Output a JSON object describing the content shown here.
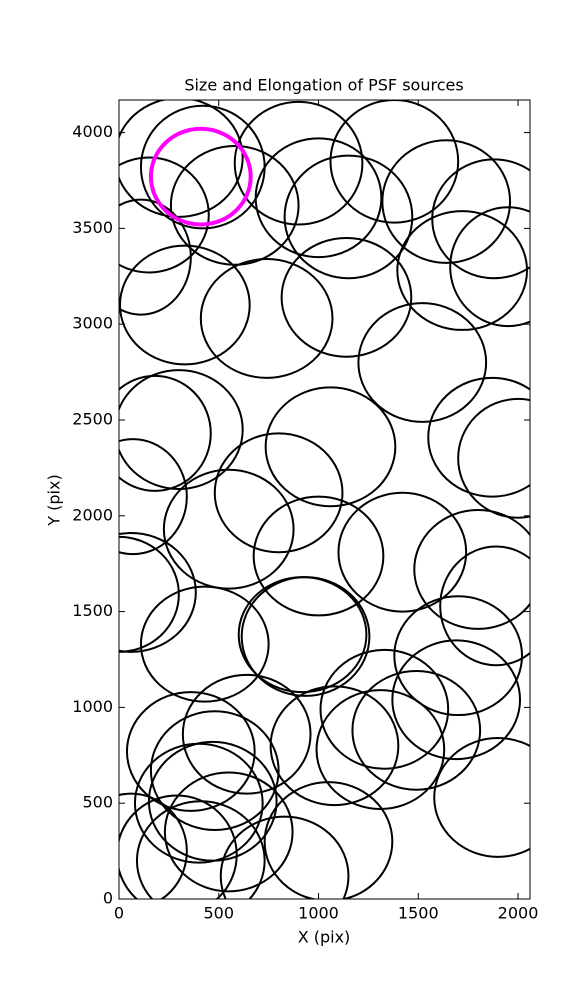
{
  "chart_data": {
    "type": "ellipse",
    "title": "Size and Elongation of PSF sources",
    "xlabel": "X (pix)",
    "ylabel": "Y (pix)",
    "xlim": [
      0,
      2060
    ],
    "ylim": [
      0,
      4170
    ],
    "xticks": [
      0,
      500,
      1000,
      1500,
      2000
    ],
    "yticks": [
      0,
      500,
      1000,
      1500,
      2000,
      2500,
      3000,
      3500,
      4000
    ],
    "series": [
      {
        "color": "#000000",
        "x": [
          300,
          420,
          580,
          900,
          1000,
          1150,
          1380,
          1640,
          1880,
          1950,
          1720,
          150,
          110,
          330,
          740,
          1140,
          1520,
          1060,
          1870,
          2000,
          300,
          180,
          70,
          800,
          550,
          1000,
          1420,
          1800,
          1890,
          60,
          0,
          430,
          920,
          935,
          1700,
          640,
          360,
          1080,
          1330,
          1690,
          1490,
          1310,
          1900,
          480,
          470,
          400,
          550,
          1050,
          290,
          410,
          830,
          60
        ],
        "y": [
          3870,
          3820,
          3620,
          3840,
          3660,
          3560,
          3850,
          3640,
          3550,
          3300,
          3280,
          3570,
          3350,
          3100,
          3030,
          3140,
          2800,
          2360,
          2410,
          2300,
          2450,
          2430,
          2100,
          2120,
          1930,
          1790,
          1810,
          1720,
          1530,
          1600,
          1590,
          1330,
          1380,
          1370,
          1270,
          860,
          770,
          800,
          990,
          1040,
          880,
          780,
          530,
          670,
          510,
          500,
          350,
          300,
          230,
          200,
          120,
          250
        ],
        "width": [
          640,
          620,
          640,
          640,
          630,
          640,
          640,
          640,
          620,
          580,
          650,
          600,
          500,
          650,
          660,
          650,
          640,
          650,
          640,
          600,
          640,
          560,
          540,
          640,
          650,
          650,
          640,
          640,
          560,
          650,
          600,
          640,
          640,
          640,
          640,
          640,
          640,
          640,
          640,
          640,
          640,
          640,
          640,
          640,
          640,
          640,
          640,
          640,
          600,
          640,
          640,
          560
        ],
        "height": [
          620,
          640,
          620,
          640,
          620,
          640,
          640,
          640,
          620,
          620,
          620,
          600,
          600,
          620,
          620,
          620,
          620,
          620,
          620,
          620,
          620,
          600,
          600,
          620,
          620,
          620,
          620,
          620,
          620,
          620,
          600,
          600,
          600,
          620,
          620,
          620,
          620,
          620,
          620,
          620,
          620,
          620,
          620,
          620,
          620,
          620,
          620,
          620,
          620,
          620,
          620,
          600
        ]
      },
      {
        "color": "#ff00ff",
        "x": [
          410
        ],
        "y": [
          3770
        ],
        "width": [
          500
        ],
        "height": [
          500
        ]
      }
    ]
  }
}
